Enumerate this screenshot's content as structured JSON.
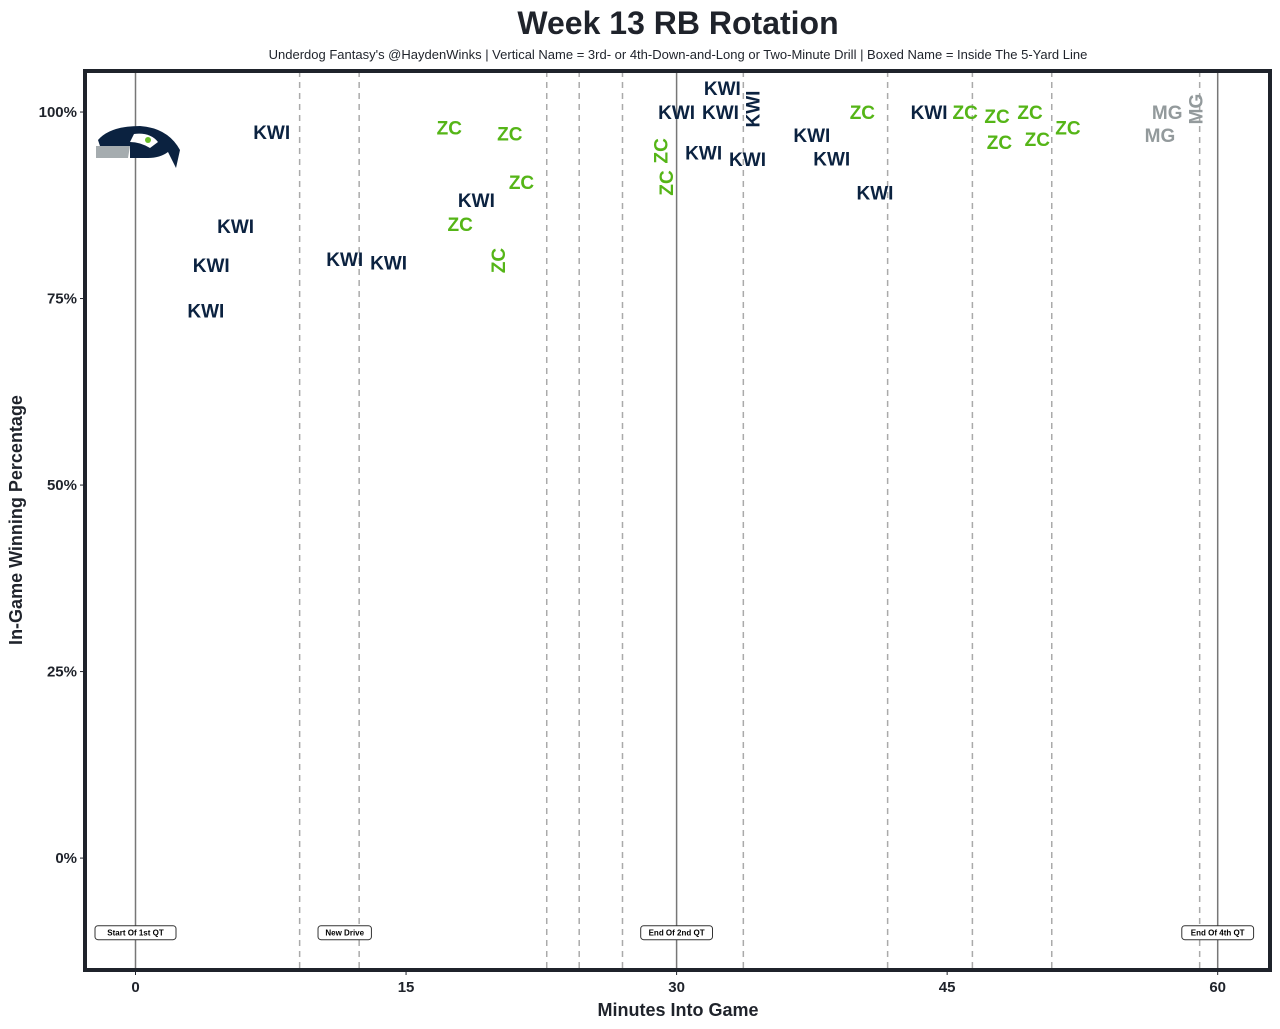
{
  "chart_data": {
    "type": "scatter",
    "title": "Week 13 RB Rotation",
    "subtitle": "Underdog Fantasy's @HaydenWinks | Vertical Name = 3rd- or 4th-Down-and-Long or Two-Minute Drill | Boxed Name = Inside The 5-Yard Line",
    "xlabel": "Minutes Into Game",
    "ylabel": "In-Game Winning Percentage",
    "xlim": [
      -2.8,
      62.9
    ],
    "ylim": [
      -15,
      105.5
    ],
    "xticks": [
      0,
      15,
      30,
      45,
      60
    ],
    "xtick_labels": [
      "0",
      "15",
      "30",
      "45",
      "60"
    ],
    "yticks": [
      0,
      25,
      50,
      75,
      100
    ],
    "ytick_labels": [
      "0%",
      "25%",
      "50%",
      "75%",
      "100%"
    ],
    "colors": {
      "KWI": "#0b2240",
      "ZC": "#55b517",
      "MG": "#939a9c"
    },
    "solid_lines": [
      0,
      30,
      60
    ],
    "dashed_lines": [
      9.1,
      12.4,
      22.8,
      24.6,
      27.0,
      33.7,
      41.7,
      46.4,
      50.8,
      59.0
    ],
    "annotations": [
      {
        "x": 0,
        "y": -10,
        "text": "Start Of 1st QT"
      },
      {
        "x": 11.6,
        "y": -10,
        "text": "New Drive"
      },
      {
        "x": 30,
        "y": -10,
        "text": "End Of 2nd QT"
      },
      {
        "x": 60,
        "y": -10,
        "text": "End Of 4th QT"
      }
    ],
    "points": [
      {
        "name": "KWI",
        "x": 7.55,
        "y": 97.3,
        "vertical": false
      },
      {
        "name": "KWI",
        "x": 5.55,
        "y": 84.7,
        "vertical": false
      },
      {
        "name": "KWI",
        "x": 4.2,
        "y": 79.5,
        "vertical": false
      },
      {
        "name": "KWI",
        "x": 3.9,
        "y": 73.4,
        "vertical": false
      },
      {
        "name": "KWI",
        "x": 11.6,
        "y": 80.3,
        "vertical": false
      },
      {
        "name": "KWI",
        "x": 13.7,
        "y": 79.8,
        "vertical": false
      },
      {
        "name": "ZC",
        "x": 17.4,
        "y": 97.9,
        "vertical": false
      },
      {
        "name": "ZC",
        "x": 20.75,
        "y": 97.1,
        "vertical": false
      },
      {
        "name": "ZC",
        "x": 21.4,
        "y": 90.6,
        "vertical": false
      },
      {
        "name": "KWI",
        "x": 18.9,
        "y": 88.2,
        "vertical": false
      },
      {
        "name": "ZC",
        "x": 18.0,
        "y": 85.0,
        "vertical": false
      },
      {
        "name": "ZC",
        "x": 20.1,
        "y": 80.1,
        "vertical": true
      },
      {
        "name": "ZC",
        "x": 29.1,
        "y": 94.8,
        "vertical": true
      },
      {
        "name": "ZC",
        "x": 29.4,
        "y": 90.5,
        "vertical": true
      },
      {
        "name": "KWI",
        "x": 30.0,
        "y": 100,
        "vertical": false
      },
      {
        "name": "KWI",
        "x": 31.1,
        "y": 100,
        "vertical": false
      },
      {
        "name": "KWI",
        "x": 32.2,
        "y": 100.4,
        "vertical": true
      },
      {
        "name": "KWI",
        "x": 33.2,
        "y": 100,
        "vertical": false
      },
      {
        "name": "KWI",
        "x": 31.5,
        "y": 94.6,
        "vertical": false
      },
      {
        "name": "KWI",
        "x": 33.6,
        "y": 93.7,
        "vertical": false
      },
      {
        "name": "KWI",
        "x": 37.5,
        "y": 96.9,
        "vertical": false
      },
      {
        "name": "KWI",
        "x": 38.6,
        "y": 94.6,
        "vertical": false
      },
      {
        "name": "ZC",
        "x": 40.3,
        "y": 100,
        "vertical": false
      },
      {
        "name": "KWI",
        "x": 41.0,
        "y": 89.2,
        "vertical": false
      },
      {
        "name": "KWI",
        "x": 44.0,
        "y": 100,
        "vertical": false
      },
      {
        "name": "ZC",
        "x": 45.0,
        "y": 100,
        "vertical": false
      },
      {
        "name": "ZC",
        "x": 47.1,
        "y": 99.5,
        "vertical": false
      },
      {
        "name": "ZC",
        "x": 48.6,
        "y": 100,
        "vertical": false
      },
      {
        "name": "ZC",
        "x": 47.9,
        "y": 98.4,
        "vertical": false
      },
      {
        "name": "ZC",
        "x": 50.0,
        "y": 97.2,
        "vertical": false
      },
      {
        "name": "ZC",
        "x": 50.7,
        "y": 97.9,
        "vertical": false
      },
      {
        "name": "MG",
        "x": 57.2,
        "y": 100,
        "vertical": false
      },
      {
        "name": "MG",
        "x": 58.1,
        "y": 100.4,
        "vertical": true
      },
      {
        "name": "MG",
        "x": 56.8,
        "y": 96.9,
        "vertical": false
      }
    ]
  }
}
